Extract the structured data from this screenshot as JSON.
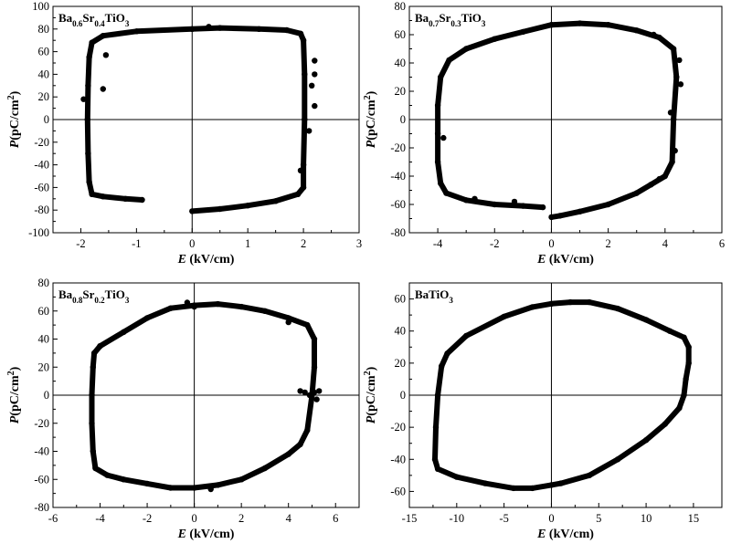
{
  "chart_data": [
    {
      "type": "scatter",
      "title_parts": [
        [
          "Ba",
          ""
        ],
        [
          "0.6",
          "sub"
        ],
        [
          "Sr",
          ""
        ],
        [
          "0.4",
          "sub"
        ],
        [
          "TiO",
          ""
        ],
        [
          "3",
          "sub"
        ]
      ],
      "xlabel_italic": "E",
      "xlabel_rest": " (kV/cm)",
      "ylabel_italic": "P",
      "ylabel_rest": "(pC/cm",
      "ylabel_sup": "2",
      "ylabel_close": ")",
      "xlim": [
        -2.5,
        3
      ],
      "ylim": [
        -100,
        100
      ],
      "xticks": [
        -2,
        -1,
        0,
        1,
        2,
        3
      ],
      "yticks": [
        -100,
        -80,
        -60,
        -40,
        -20,
        0,
        20,
        40,
        60,
        80,
        100
      ],
      "series": [
        {
          "values": [
            [
              -0.9,
              -71
            ],
            [
              -1.2,
              -70
            ],
            [
              -1.6,
              -68
            ],
            [
              -1.8,
              -66
            ],
            [
              -1.85,
              -55
            ],
            [
              -1.87,
              -30
            ],
            [
              -1.88,
              0
            ],
            [
              -1.87,
              30
            ],
            [
              -1.85,
              55
            ],
            [
              -1.8,
              68
            ],
            [
              -1.6,
              74
            ],
            [
              -1.0,
              78
            ],
            [
              0.0,
              80
            ],
            [
              0.5,
              81
            ],
            [
              1.2,
              80
            ],
            [
              1.7,
              79
            ],
            [
              1.95,
              76
            ],
            [
              2.0,
              70
            ],
            [
              2.02,
              40
            ],
            [
              2.02,
              0
            ],
            [
              2.0,
              -40
            ],
            [
              2.0,
              -60
            ],
            [
              1.9,
              -66
            ],
            [
              1.5,
              -72
            ],
            [
              1.0,
              -76
            ],
            [
              0.5,
              -79
            ],
            [
              0.0,
              -81
            ]
          ]
        }
      ],
      "outliers": [
        [
          -1.95,
          18
        ],
        [
          -1.6,
          27
        ],
        [
          -1.55,
          57
        ],
        [
          2.2,
          52
        ],
        [
          2.2,
          40
        ],
        [
          2.15,
          30
        ],
        [
          2.2,
          12
        ],
        [
          2.1,
          -10
        ],
        [
          1.95,
          -45
        ],
        [
          0.3,
          82
        ]
      ]
    },
    {
      "type": "scatter",
      "title_parts": [
        [
          "Ba",
          ""
        ],
        [
          "0.7",
          "sub"
        ],
        [
          "Sr",
          ""
        ],
        [
          "0.3",
          "sub"
        ],
        [
          "TiO",
          ""
        ],
        [
          "3",
          "sub"
        ]
      ],
      "xlabel_italic": "E",
      "xlabel_rest": " (kV/cm)",
      "ylabel_italic": "P",
      "ylabel_rest": "(pC/cm",
      "ylabel_sup": "2",
      "ylabel_close": ")",
      "xlim": [
        -5,
        6
      ],
      "ylim": [
        -80,
        80
      ],
      "xticks": [
        -4,
        -2,
        0,
        2,
        4,
        6
      ],
      "yticks": [
        -80,
        -60,
        -40,
        -20,
        0,
        20,
        40,
        60,
        80
      ],
      "series": [
        {
          "values": [
            [
              -0.3,
              -62
            ],
            [
              -1.0,
              -61
            ],
            [
              -2.0,
              -60
            ],
            [
              -3.0,
              -57
            ],
            [
              -3.7,
              -52
            ],
            [
              -3.9,
              -45
            ],
            [
              -4.0,
              -30
            ],
            [
              -4.0,
              -10
            ],
            [
              -4.0,
              10
            ],
            [
              -3.9,
              30
            ],
            [
              -3.6,
              42
            ],
            [
              -3.0,
              50
            ],
            [
              -2.0,
              57
            ],
            [
              -1.0,
              62
            ],
            [
              0.0,
              67
            ],
            [
              1.0,
              68
            ],
            [
              2.0,
              67
            ],
            [
              3.0,
              63
            ],
            [
              3.8,
              58
            ],
            [
              4.3,
              50
            ],
            [
              4.4,
              30
            ],
            [
              4.3,
              0
            ],
            [
              4.25,
              -30
            ],
            [
              4.0,
              -40
            ],
            [
              3.5,
              -46
            ],
            [
              3.0,
              -52
            ],
            [
              2.0,
              -60
            ],
            [
              1.0,
              -65
            ],
            [
              0.3,
              -68
            ],
            [
              0.0,
              -69
            ]
          ]
        }
      ],
      "outliers": [
        [
          3.6,
          60
        ],
        [
          4.5,
          42
        ],
        [
          4.55,
          25
        ],
        [
          4.2,
          5
        ],
        [
          4.35,
          -22
        ],
        [
          3.8,
          -42
        ],
        [
          -3.8,
          -13
        ],
        [
          -1.3,
          -58
        ],
        [
          -2.7,
          -56
        ]
      ]
    },
    {
      "type": "scatter",
      "title_parts": [
        [
          "Ba",
          ""
        ],
        [
          "0.8",
          "sub"
        ],
        [
          "Sr",
          ""
        ],
        [
          "0.2",
          "sub"
        ],
        [
          "TiO",
          ""
        ],
        [
          "3",
          "sub"
        ]
      ],
      "xlabel_italic": "E",
      "xlabel_rest": " (kV/cm)",
      "ylabel_italic": "P",
      "ylabel_rest": "(pC/cm",
      "ylabel_sup": "2",
      "ylabel_close": ")",
      "xlim": [
        -6,
        7
      ],
      "ylim": [
        -80,
        80
      ],
      "xticks": [
        -6,
        -4,
        -2,
        0,
        2,
        4,
        6
      ],
      "yticks": [
        -80,
        -60,
        -40,
        -20,
        0,
        20,
        40,
        60,
        80
      ],
      "series": [
        {
          "values": [
            [
              -4.0,
              35
            ],
            [
              -3.0,
              45
            ],
            [
              -2.0,
              55
            ],
            [
              -1.0,
              62
            ],
            [
              0.0,
              64
            ],
            [
              1.0,
              65
            ],
            [
              2.0,
              63
            ],
            [
              3.0,
              60
            ],
            [
              4.0,
              55
            ],
            [
              4.8,
              50
            ],
            [
              5.1,
              40
            ],
            [
              5.1,
              20
            ],
            [
              5.0,
              0
            ],
            [
              4.8,
              -25
            ],
            [
              4.5,
              -35
            ],
            [
              4.0,
              -42
            ],
            [
              3.0,
              -52
            ],
            [
              2.0,
              -60
            ],
            [
              1.0,
              -64
            ],
            [
              0.0,
              -66
            ],
            [
              -1.0,
              -66
            ],
            [
              -2.0,
              -63
            ],
            [
              -3.0,
              -60
            ],
            [
              -3.7,
              -57
            ],
            [
              -4.2,
              -52
            ],
            [
              -4.3,
              -40
            ],
            [
              -4.35,
              -20
            ],
            [
              -4.35,
              0
            ],
            [
              -4.3,
              20
            ],
            [
              -4.25,
              30
            ],
            [
              -4.0,
              35
            ]
          ]
        }
      ],
      "outliers": [
        [
          4.5,
          3
        ],
        [
          4.7,
          2
        ],
        [
          4.9,
          0
        ],
        [
          5.3,
          3
        ],
        [
          5.2,
          -3
        ],
        [
          5.1,
          2
        ],
        [
          0.0,
          63
        ],
        [
          -0.3,
          66
        ],
        [
          4.0,
          52
        ],
        [
          0.7,
          -67
        ]
      ]
    },
    {
      "type": "scatter",
      "title_parts": [
        [
          "BaTiO",
          ""
        ],
        [
          "3",
          "sub"
        ]
      ],
      "xlabel_italic": "E",
      "xlabel_rest": " (kV/cm)",
      "ylabel_italic": "P",
      "ylabel_rest": "(pC/cm",
      "ylabel_sup": "2",
      "ylabel_close": ")",
      "xlim": [
        -15,
        18
      ],
      "ylim": [
        -70,
        70
      ],
      "xticks": [
        -15,
        -10,
        -5,
        0,
        5,
        10,
        15
      ],
      "yticks": [
        -60,
        -40,
        -20,
        0,
        20,
        40,
        60
      ],
      "series": [
        {
          "values": [
            [
              -11.6,
              18
            ],
            [
              -11.0,
              26
            ],
            [
              -9.0,
              37
            ],
            [
              -5.0,
              49
            ],
            [
              -2.0,
              55
            ],
            [
              0.0,
              57
            ],
            [
              2.0,
              58
            ],
            [
              4.0,
              58
            ],
            [
              7.0,
              54
            ],
            [
              10.0,
              47
            ],
            [
              12.5,
              40
            ],
            [
              14.0,
              36
            ],
            [
              14.5,
              30
            ],
            [
              14.5,
              20
            ],
            [
              14.2,
              10
            ],
            [
              14.0,
              0
            ],
            [
              13.5,
              -8
            ],
            [
              12.0,
              -18
            ],
            [
              10.0,
              -28
            ],
            [
              7.0,
              -40
            ],
            [
              4.0,
              -50
            ],
            [
              1.0,
              -55
            ],
            [
              0.0,
              -56
            ],
            [
              -2.0,
              -58
            ],
            [
              -4.0,
              -58
            ],
            [
              -7.0,
              -55
            ],
            [
              -10.0,
              -51
            ],
            [
              -12.0,
              -46
            ],
            [
              -12.3,
              -40
            ],
            [
              -12.2,
              -20
            ],
            [
              -12.0,
              0
            ],
            [
              -11.6,
              18
            ]
          ]
        }
      ],
      "outliers": []
    }
  ]
}
